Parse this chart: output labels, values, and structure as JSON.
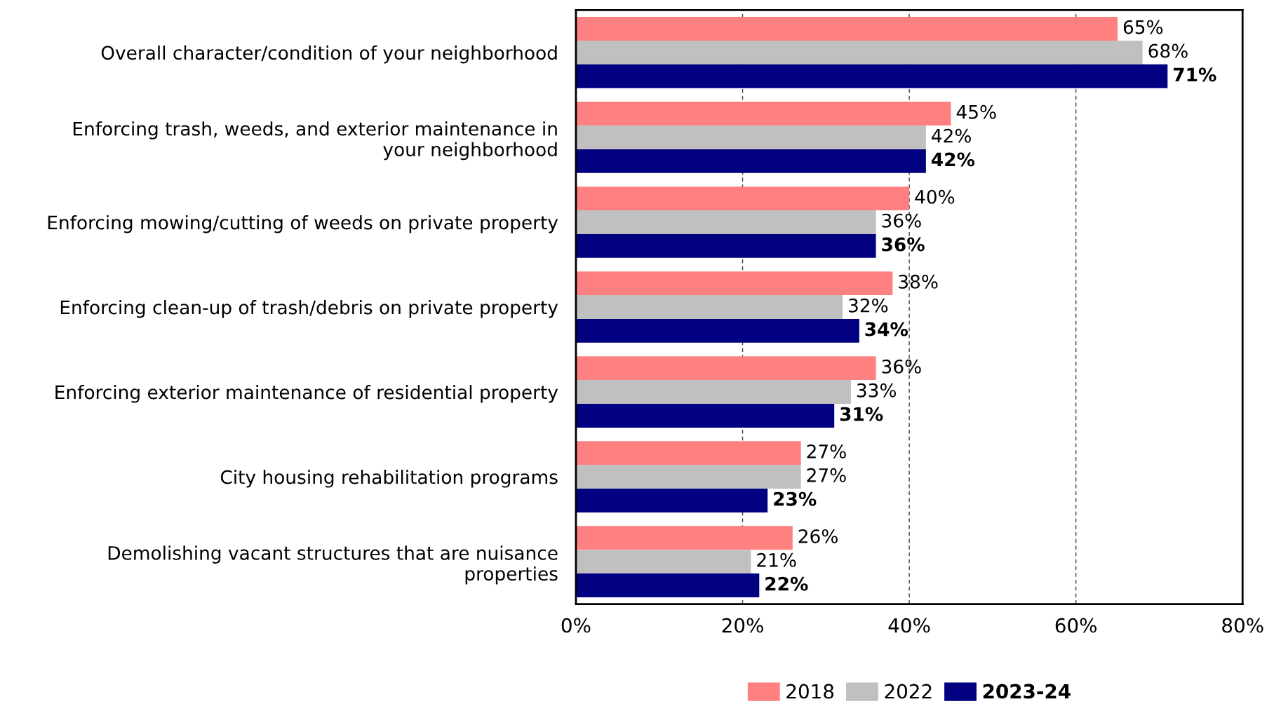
{
  "chart_data": {
    "type": "bar",
    "orientation": "horizontal",
    "categories": [
      "Overall character/condition of your neighborhood",
      "Enforcing trash, weeds, and exterior maintenance in\nyour neighborhood",
      "Enforcing mowing/cutting of weeds on private property",
      "Enforcing clean-up of trash/debris on private property",
      "Enforcing exterior maintenance of residential property",
      "City housing rehabilitation programs",
      "Demolishing vacant structures that are nuisance\nproperties"
    ],
    "series": [
      {
        "name": "2018",
        "color": "#ff8080",
        "values": [
          65,
          45,
          40,
          38,
          36,
          27,
          26
        ],
        "value_labels": [
          "65%",
          "45%",
          "40%",
          "38%",
          "36%",
          "27%",
          "26%"
        ]
      },
      {
        "name": "2022",
        "color": "#c0c0c0",
        "values": [
          68,
          42,
          36,
          32,
          33,
          27,
          21
        ],
        "value_labels": [
          "68%",
          "42%",
          "36%",
          "32%",
          "33%",
          "27%",
          "21%"
        ]
      },
      {
        "name": "2023-24",
        "color": "#000080",
        "values": [
          71,
          42,
          36,
          34,
          31,
          23,
          22
        ],
        "value_labels": [
          "71%",
          "42%",
          "36%",
          "34%",
          "31%",
          "23%",
          "22%"
        ]
      }
    ],
    "xlim": [
      0,
      80
    ],
    "xticks": [
      {
        "value": 0,
        "label": "0%"
      },
      {
        "value": 20,
        "label": "20%"
      },
      {
        "value": 40,
        "label": "40%"
      },
      {
        "value": 60,
        "label": "60%"
      },
      {
        "value": 80,
        "label": "80%"
      }
    ],
    "grid": "x",
    "legend": "bottom"
  }
}
